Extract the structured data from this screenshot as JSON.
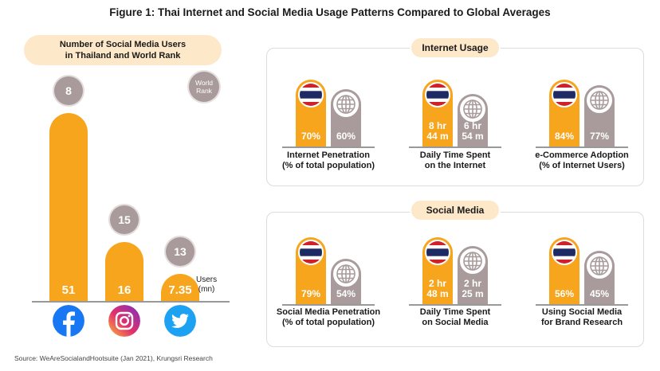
{
  "title": "Figure 1: Thai Internet and Social Media Usage Patterns Compared to Global Averages",
  "source": "Source: WeAreSocialandHootsuite (Jan 2021), Krungsri Research",
  "colors": {
    "thailand": "#f7a51c",
    "world": "#a99b9b",
    "header_fill": "#fde9c9"
  },
  "chart_data": [
    {
      "type": "bar",
      "title": "Number of Social Media Users in Thailand and World Rank",
      "categories": [
        "Facebook",
        "Instagram",
        "Twitter"
      ],
      "icons": [
        "facebook-icon",
        "instagram-icon",
        "twitter-icon"
      ],
      "values": [
        51,
        16,
        7.35
      ],
      "value_labels": [
        "51",
        "16",
        "7.35"
      ],
      "world_rank": [
        8,
        15,
        13
      ],
      "unit_label": "Users\n(mn)",
      "badge_label": "World Rank"
    },
    {
      "type": "bar",
      "title": "Internet Usage",
      "series_icons": [
        "thailand-flag-icon",
        "globe-icon"
      ],
      "metrics": [
        {
          "label": "Internet Penetration\n(% of total population)",
          "thai": 70,
          "world": 60,
          "thai_label": "70%",
          "world_label": "60%"
        },
        {
          "label": "Daily Time Spent\non the Internet",
          "thai": 8.73,
          "world": 6.9,
          "thai_label": "8 hr\n44 m",
          "world_label": "6 hr\n54 m"
        },
        {
          "label": "e-Commerce Adoption\n(% of Internet Users)",
          "thai": 84,
          "world": 77,
          "thai_label": "84%",
          "world_label": "77%"
        }
      ]
    },
    {
      "type": "bar",
      "title": "Social Media",
      "series_icons": [
        "thailand-flag-icon",
        "globe-icon"
      ],
      "metrics": [
        {
          "label": "Social Media Penetration\n(% of total population)",
          "thai": 79,
          "world": 54,
          "thai_label": "79%",
          "world_label": "54%"
        },
        {
          "label": "Daily Time Spent\non Social Media",
          "thai": 2.8,
          "world": 2.42,
          "thai_label": "2 hr\n48 m",
          "world_label": "2 hr\n25 m"
        },
        {
          "label": "Using Social Media\nfor Brand Research",
          "thai": 56,
          "world": 45,
          "thai_label": "56%",
          "world_label": "45%"
        }
      ]
    }
  ]
}
